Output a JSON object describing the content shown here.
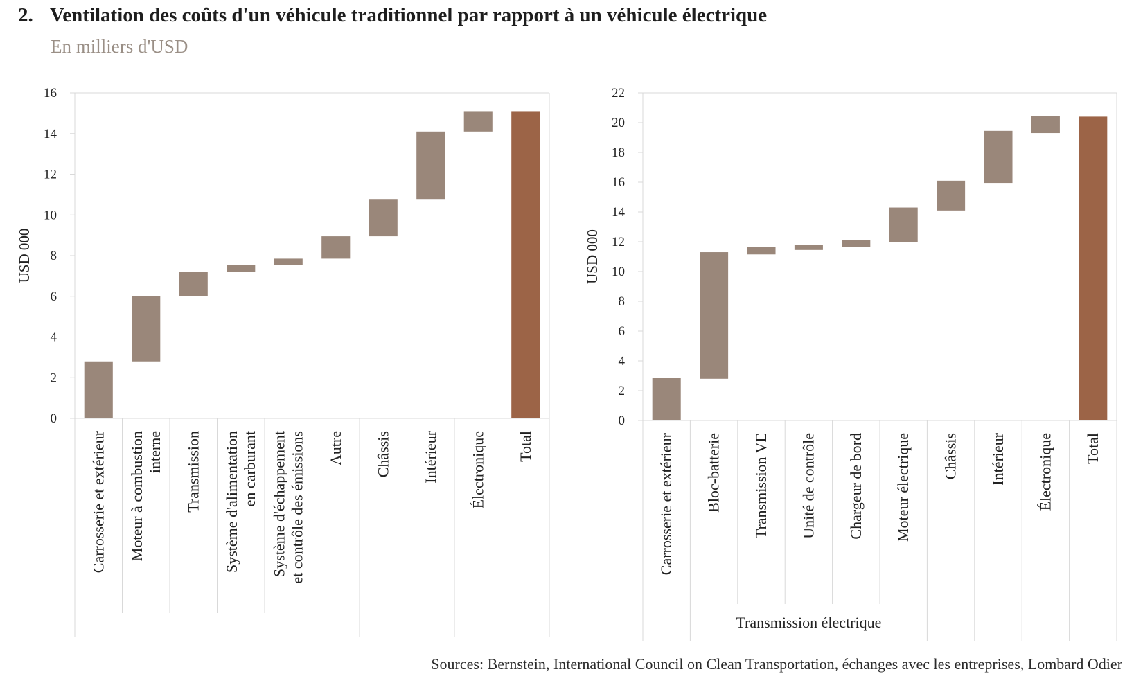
{
  "header": {
    "number": "2.",
    "title": "Ventilation des coûts d'un véhicule traditionnel par rapport à un véhicule électrique",
    "subtitle": "En milliers d'USD"
  },
  "sources": "Sources: Bernstein, International Council on Clean Transportation, échanges avec les entreprises, Lombard Odier",
  "colors": {
    "bar": "#9a877a",
    "total": "#9c6447",
    "grid": "#d9d9d9"
  },
  "chart_data": [
    {
      "type": "bar",
      "subtype": "waterfall",
      "ylabel": "USD 000",
      "ylim": [
        0,
        16
      ],
      "yticks": [
        0,
        2,
        4,
        6,
        8,
        10,
        12,
        14,
        16
      ],
      "grid": false,
      "categories": [
        [
          "Carrosserie et extérieur"
        ],
        [
          "Moteur à combustion",
          "interne"
        ],
        [
          "Transmission"
        ],
        [
          "Système d'alimentation",
          "en carburant"
        ],
        [
          "Système d'échappement",
          "et contrôle des émissions"
        ],
        [
          "Autre"
        ],
        [
          "Châssis"
        ],
        [
          "Intérieur"
        ],
        [
          "Électronique"
        ],
        [
          "Total"
        ]
      ],
      "bars": [
        {
          "start": 0,
          "end": 2.8
        },
        {
          "start": 2.8,
          "end": 6.0
        },
        {
          "start": 6.0,
          "end": 7.2
        },
        {
          "start": 7.2,
          "end": 7.55
        },
        {
          "start": 7.55,
          "end": 7.85
        },
        {
          "start": 7.85,
          "end": 8.95
        },
        {
          "start": 8.95,
          "end": 10.75
        },
        {
          "start": 10.75,
          "end": 14.1
        },
        {
          "start": 14.1,
          "end": 15.1
        },
        {
          "start": 0,
          "end": 15.1,
          "total": true
        }
      ],
      "group_label": ""
    },
    {
      "type": "bar",
      "subtype": "waterfall",
      "ylabel": "USD 000",
      "ylim": [
        0,
        22
      ],
      "yticks": [
        0,
        2,
        4,
        6,
        8,
        10,
        12,
        14,
        16,
        18,
        20,
        22
      ],
      "grid": false,
      "categories": [
        [
          "Carrosserie et extérieur"
        ],
        [
          "Bloc-batterie"
        ],
        [
          "Transmission VE"
        ],
        [
          "Unité de contrôle"
        ],
        [
          "Chargeur de bord"
        ],
        [
          "Moteur électrique"
        ],
        [
          "Châssis"
        ],
        [
          "Intérieur"
        ],
        [
          "Électronique"
        ],
        [
          "Total"
        ]
      ],
      "bars": [
        {
          "start": 0,
          "end": 2.85
        },
        {
          "start": 2.8,
          "end": 11.3
        },
        {
          "start": 11.15,
          "end": 11.65
        },
        {
          "start": 11.45,
          "end": 11.8
        },
        {
          "start": 11.65,
          "end": 12.1
        },
        {
          "start": 12.0,
          "end": 14.3
        },
        {
          "start": 14.1,
          "end": 16.1
        },
        {
          "start": 15.95,
          "end": 19.45
        },
        {
          "start": 19.3,
          "end": 20.45
        },
        {
          "start": 0,
          "end": 20.4,
          "total": true
        }
      ],
      "group_label": "Transmission électrique",
      "group_span": [
        1,
        5
      ]
    }
  ]
}
